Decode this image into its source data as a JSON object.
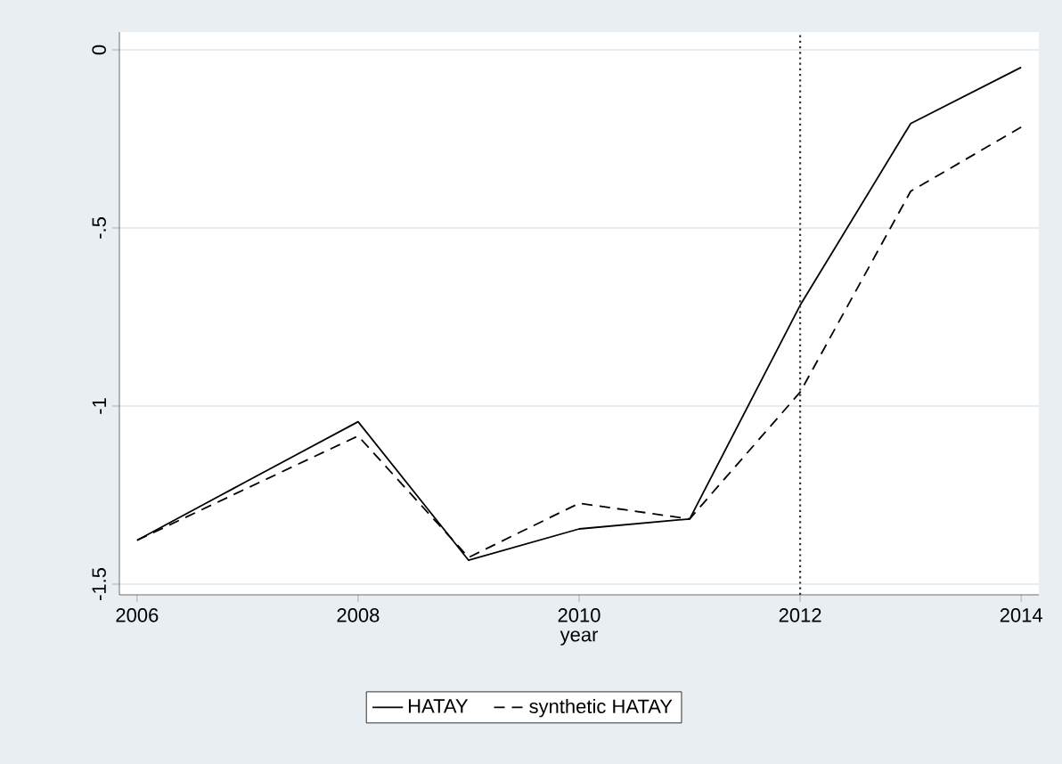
{
  "chart_data": {
    "type": "line",
    "xlabel": "year",
    "x": [
      2006,
      2007,
      2008,
      2009,
      2010,
      2011,
      2012,
      2013,
      2014
    ],
    "series": [
      {
        "name": "HATAY",
        "color": "#000000",
        "line_style": "solid",
        "values": [
          -1.377,
          -1.21,
          -1.044,
          -1.433,
          -1.345,
          -1.317,
          -0.717,
          -0.207,
          -0.049
        ]
      },
      {
        "name": "synthetic HATAY",
        "color": "#000000",
        "line_style": "dashed",
        "values": [
          -1.377,
          -1.23,
          -1.084,
          -1.425,
          -1.273,
          -1.317,
          -0.961,
          -0.397,
          -0.217
        ]
      }
    ],
    "xlim": [
      2005.84,
      2014.16
    ],
    "ylim": [
      -1.53,
      0.05
    ],
    "xticks": [
      2006,
      2008,
      2010,
      2012,
      2014
    ],
    "yticks": [
      {
        "value": 0,
        "label": "0"
      },
      {
        "value": -0.5,
        "label": "-.5"
      },
      {
        "value": -1,
        "label": "-1"
      },
      {
        "value": -1.5,
        "label": "-1.5"
      }
    ],
    "ref_lines": [
      {
        "axis": "x",
        "value": 2012,
        "color": "#333333",
        "line_style": "dotted"
      }
    ],
    "grid": "y",
    "legend": "bottom",
    "marker": "none"
  }
}
